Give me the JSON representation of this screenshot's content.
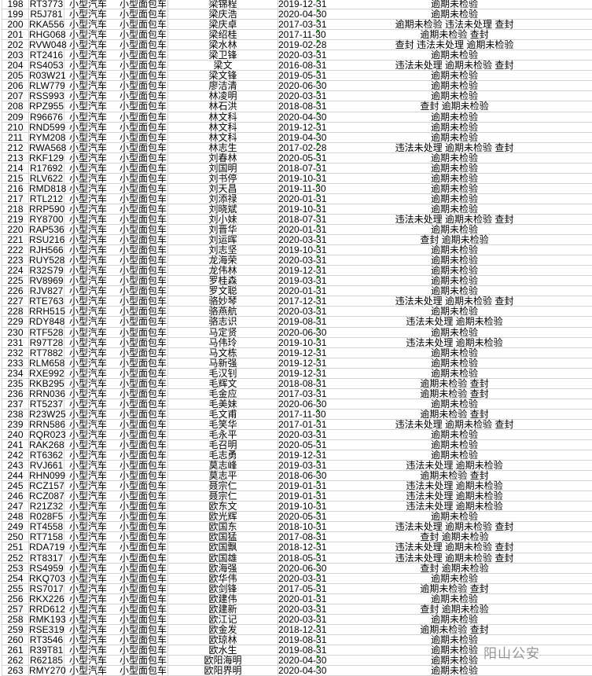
{
  "vehicle_type": "小型汽车",
  "vehicle_model": "小型面包车",
  "watermark": "阳山公安",
  "colors": {
    "grid": "#d4d4d4",
    "comment_indicator": "#1e8a1e"
  },
  "rows": [
    [
      "198",
      "RT3773",
      "梁锦程",
      "2019-12-31",
      "逾期未检验"
    ],
    [
      "199",
      "R5J781",
      "梁庆浩",
      "2020-04-30",
      "逾期未检验"
    ],
    [
      "200",
      "RKA556",
      "梁庆卓",
      "2017-03-31",
      "逾期未检验 违法未处理 查封"
    ],
    [
      "201",
      "RHG068",
      "梁绍桂",
      "2017-11-30",
      "逾期未检验 查封"
    ],
    [
      "202",
      "RVW048",
      "梁水林",
      "2019-02-28",
      "查封 违法未处理 逾期未检验"
    ],
    [
      "203",
      "RT2416",
      "梁卫锋",
      "2020-03-31",
      "逾期未检验"
    ],
    [
      "204",
      "RS4053",
      "梁文",
      "2016-08-31",
      "违法未处理 逾期未检验 查封"
    ],
    [
      "205",
      "R03W21",
      "梁文锋",
      "2019-05-31",
      "逾期未检验"
    ],
    [
      "206",
      "RLW779",
      "廖洁清",
      "2020-06-30",
      "逾期未检验"
    ],
    [
      "207",
      "RSS993",
      "林凌明",
      "2020-03-31",
      "逾期未检验"
    ],
    [
      "208",
      "RPZ955",
      "林石洪",
      "2018-08-31",
      "查封 逾期未检验"
    ],
    [
      "209",
      "R96676",
      "林文科",
      "2020-04-30",
      "逾期未检验"
    ],
    [
      "210",
      "RND599",
      "林文科",
      "2019-12-31",
      "逾期未检验"
    ],
    [
      "211",
      "RYM208",
      "林文科",
      "2019-04-30",
      "逾期未检验"
    ],
    [
      "212",
      "RWA568",
      "林志生",
      "2017-02-28",
      "违法未处理 逾期未检验 查封"
    ],
    [
      "213",
      "RKF129",
      "刘春林",
      "2020-05-31",
      "逾期未检验"
    ],
    [
      "214",
      "R17692",
      "刘国明",
      "2018-07-31",
      "逾期未检验"
    ],
    [
      "215",
      "RLV622",
      "刘书停",
      "2019-10-31",
      "逾期未检验"
    ],
    [
      "216",
      "RMD818",
      "刘天昌",
      "2019-11-30",
      "逾期未检验"
    ],
    [
      "217",
      "RTL212",
      "刘添禄",
      "2020-01-31",
      "逾期未检验"
    ],
    [
      "218",
      "RRP590",
      "刘晓斌",
      "2019-10-31",
      "逾期未检验"
    ],
    [
      "219",
      "RY8700",
      "刘小妹",
      "2018-07-31",
      "违法未处理 逾期未检验 查封"
    ],
    [
      "220",
      "RAP536",
      "刘晋华",
      "2020-01-31",
      "逾期未检验"
    ],
    [
      "221",
      "RSU216",
      "刘运晖",
      "2020-03-31",
      "查封 逾期未检验"
    ],
    [
      "222",
      "RJH566",
      "刘志坚",
      "2019-10-31",
      "逾期未检验"
    ],
    [
      "223",
      "RUY528",
      "龙海荣",
      "2020-03-31",
      "逾期未检验"
    ],
    [
      "224",
      "R32S79",
      "龙伟林",
      "2019-12-31",
      "逾期未检验"
    ],
    [
      "225",
      "RV8969",
      "罗桂森",
      "2019-03-31",
      "逾期未检验"
    ],
    [
      "226",
      "RJV827",
      "罗文聪",
      "2020-01-31",
      "逾期未检验"
    ],
    [
      "227",
      "RTE763",
      "骆妙琴",
      "2017-12-31",
      "违法未处理 逾期未检验 查封"
    ],
    [
      "228",
      "RRH515",
      "骆燕航",
      "2020-03-31",
      "逾期未检验"
    ],
    [
      "229",
      "RDY848",
      "骆志识",
      "2019-08-31",
      "违法未处理 逾期未检验"
    ],
    [
      "230",
      "RTF528",
      "马定贤",
      "2020-06-30",
      "逾期未检验"
    ],
    [
      "231",
      "R97T28",
      "马伟玲",
      "2019-10-31",
      "违法未处理 逾期未检验"
    ],
    [
      "232",
      "RT7882",
      "马文栋",
      "2019-12-31",
      "逾期未检验"
    ],
    [
      "233",
      "RLM658",
      "马新强",
      "2019-12-31",
      "逾期未检验"
    ],
    [
      "234",
      "RXE992",
      "毛汉钊",
      "2019-12-31",
      "逾期未检验"
    ],
    [
      "235",
      "RKB295",
      "毛辉文",
      "2018-08-31",
      "逾期未检验 查封"
    ],
    [
      "236",
      "RRN036",
      "毛金应",
      "2017-03-31",
      "逾期未检验 查封"
    ],
    [
      "237",
      "RT5237",
      "毛美妹",
      "2020-06-30",
      "逾期未检验"
    ],
    [
      "238",
      "R23W25",
      "毛文甫",
      "2017-11-30",
      "逾期未检验 查封"
    ],
    [
      "239",
      "RRN586",
      "毛笑华",
      "2017-01-31",
      "违法未处理 逾期未检验 查封"
    ],
    [
      "240",
      "RQR023",
      "毛永平",
      "2020-03-31",
      "逾期未检验"
    ],
    [
      "241",
      "RAK268",
      "毛召明",
      "2020-05-31",
      "逾期未检验"
    ],
    [
      "242",
      "RT6362",
      "毛志勇",
      "2019-12-31",
      "逾期未检验"
    ],
    [
      "243",
      "RVJ661",
      "莫志峰",
      "2019-03-31",
      "违法未处理 逾期未检验"
    ],
    [
      "244",
      "RHN099",
      "莫志平",
      "2018-06-30",
      "逾期未检验 查封"
    ],
    [
      "245",
      "RCZ157",
      "聂宗仁",
      "2019-01-31",
      "违法未处理 逾期未检验"
    ],
    [
      "246",
      "RCZ087",
      "聂宗仁",
      "2019-01-31",
      "违法未处理 逾期未检验"
    ],
    [
      "247",
      "R21Z32",
      "欧东文",
      "2019-10-31",
      "违法未处理 逾期未检验"
    ],
    [
      "248",
      "R028F5",
      "欧光辉",
      "2020-05-31",
      "逾期未检验"
    ],
    [
      "249",
      "RT4558",
      "欧国东",
      "2018-10-31",
      "违法未处理 逾期未检验 查封"
    ],
    [
      "250",
      "RT7158",
      "欧国猛",
      "2017-08-31",
      "查封 逾期未检验"
    ],
    [
      "251",
      "RDA719",
      "欧国飘",
      "2018-12-31",
      "违法未处理 逾期未检验 查封"
    ],
    [
      "252",
      "RT8317",
      "欧国雄",
      "2018-05-31",
      "违法未处理 逾期未检验 查封"
    ],
    [
      "253",
      "RS4959",
      "欧海强",
      "2020-06-30",
      "查封 逾期未检验"
    ],
    [
      "254",
      "RKQ703",
      "欧华伟",
      "2020-03-31",
      "逾期未检验"
    ],
    [
      "255",
      "RS7017",
      "欧剑锋",
      "2017-05-31",
      "逾期未检验 查封"
    ],
    [
      "256",
      "RKX226",
      "欧建伟",
      "2020-01-31",
      "逾期未检验"
    ],
    [
      "257",
      "RRD612",
      "欧建新",
      "2020-03-31",
      "查封 逾期未检验"
    ],
    [
      "258",
      "RMK193",
      "欧江记",
      "2020-03-31",
      "逾期未检验"
    ],
    [
      "259",
      "RSE319",
      "欧金发",
      "2018-12-31",
      "逾期未检验 查封"
    ],
    [
      "260",
      "RT3546",
      "欧琼林",
      "2019-08-31",
      "逾期未检验"
    ],
    [
      "261",
      "R39T81",
      "欧水生",
      "2019-08-31",
      "逾期未检验"
    ],
    [
      "262",
      "R62185",
      "欧阳海明",
      "2020-04-30",
      "逾期未检验"
    ],
    [
      "263",
      "RMY270",
      "欧阳界明",
      "2020-04-30",
      "逾期未检验"
    ]
  ]
}
